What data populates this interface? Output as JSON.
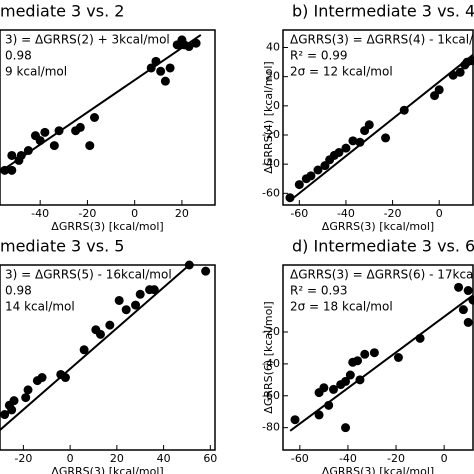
{
  "chart_data": [
    {
      "type": "scatter",
      "title": "mediate 3 vs. 2",
      "annotations": [
        "3) = ΔGRRS(2) + 3kcal/mol",
        "0.98",
        "9 kcal/mol"
      ],
      "xlabel": "ΔGRRS(3) [kcal/mol]",
      "color": "#000000",
      "x": [
        -55,
        -52,
        -49,
        -48,
        -52,
        -45,
        -42,
        -40,
        -38,
        -34,
        -32,
        -25,
        -23,
        -19,
        -17,
        7,
        9,
        11,
        13,
        15,
        18,
        20,
        21,
        23,
        26
      ],
      "y": [
        -43,
        -43,
        -37,
        -34,
        -34,
        -31,
        -22,
        -25,
        -20,
        -28,
        -19,
        -19,
        -17,
        -28,
        -11,
        19,
        23,
        17,
        11,
        19,
        33,
        36,
        33,
        32,
        34
      ],
      "fit_line": {
        "x": [
          -57,
          28
        ],
        "y": [
          -44,
          39
        ]
      },
      "xlim": [
        -57,
        34
      ],
      "ylim": [
        -64,
        42
      ],
      "xticks": [
        -40,
        -20,
        0,
        20
      ]
    },
    {
      "type": "scatter",
      "title": "b) Intermediate 3 vs. 4",
      "annotations": [
        "ΔGRRS(3) = ΔGRRS(4) - 1kcal/mol",
        "R² = 0.99",
        "2σ = 12 kcal/mol"
      ],
      "xlabel": "ΔGRRS(3) [kcal/mol]",
      "ylabel": "ΔGRRS(4) [kcal/mol]",
      "color": "#000000",
      "x": [
        -64,
        -60,
        -57,
        -55,
        -52,
        -49,
        -47,
        -45,
        -43,
        -40,
        -37,
        -34,
        -32,
        -30,
        -23,
        -15,
        -2,
        0,
        6,
        9,
        11,
        12,
        14
      ],
      "y": [
        -63,
        -54,
        -50,
        -48,
        -44,
        -41,
        -37,
        -34,
        -32,
        -29,
        -24,
        -25,
        -17,
        -13,
        -22,
        -3,
        7,
        11,
        21,
        23,
        28,
        30,
        31
      ],
      "fit_line": {
        "x": [
          -64,
          14.5
        ],
        "y": [
          -65,
          35
        ]
      },
      "xlim": [
        -67,
        14.5
      ],
      "ylim": [
        -68,
        52
      ],
      "xticks": [
        -60,
        -40,
        -20,
        0
      ],
      "yticks": [
        -60,
        -40,
        -20,
        0,
        20,
        40
      ]
    },
    {
      "type": "scatter",
      "title": "mediate 3 vs. 5",
      "annotations": [
        "3) = ΔGRRS(5) - 16kcal/mol",
        "0.98",
        "14 kcal/mol"
      ],
      "xlabel": "ΔGRRS(3) [kcal/mol]",
      "color": "#000000",
      "x": [
        -28,
        -26,
        -25,
        -24,
        -19,
        -18,
        -14,
        -12,
        -4,
        -2,
        6,
        11,
        13,
        17,
        21,
        24,
        28,
        30,
        34,
        36,
        51,
        58
      ],
      "y": [
        -47,
        -41,
        -44,
        -38,
        -36,
        -31,
        -25,
        -23,
        -21,
        -23,
        -5,
        8,
        5,
        11,
        27,
        21,
        24,
        31,
        34,
        34,
        50,
        46
      ],
      "fit_line": {
        "x": [
          -30,
          51
        ],
        "y": [
          -57,
          50
        ]
      },
      "xlim": [
        -30,
        62
      ],
      "ylim": [
        -70,
        50
      ],
      "xticks": [
        -20,
        0,
        20,
        40,
        60
      ]
    },
    {
      "type": "scatter",
      "title": "d) Intermediate 3 vs. 6",
      "annotations": [
        "ΔGRRS(3) = ΔGRRS(6) - 17kcal/mol",
        "R² = 0.93",
        "2σ = 18 kcal/mol"
      ],
      "xlabel": "ΔGRRS(3) [kcal/mol]",
      "ylabel": "ΔGRRS(6) [kcal/mol]",
      "color": "#000000",
      "x": [
        -62,
        -52,
        -52,
        -50,
        -48,
        -46,
        -43,
        -41,
        -39,
        -38,
        -36,
        -33,
        -29,
        -41,
        -35,
        -19,
        -10,
        8,
        10,
        12,
        10,
        6
      ],
      "y": [
        -75,
        -58,
        -72,
        -55,
        -66,
        -56,
        -53,
        -51,
        -47,
        -39,
        -38,
        -34,
        -33,
        -80,
        -50,
        -36,
        -24,
        -6,
        -14,
        0,
        6,
        8
      ],
      "fit_line": {
        "x": [
          -64,
          12
        ],
        "y": [
          -82,
          3
        ]
      },
      "xlim": [
        -67,
        12
      ],
      "ylim": [
        -94,
        22
      ],
      "xticks": [
        -60,
        -40,
        -20,
        0
      ],
      "yticks": [
        -80,
        -60,
        -40,
        -20
      ]
    }
  ]
}
